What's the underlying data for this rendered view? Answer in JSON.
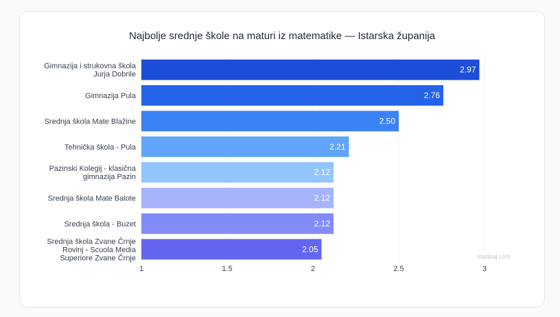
{
  "chart_data": {
    "type": "bar",
    "orientation": "horizontal",
    "title": "Najbolje srednje škole na maturi iz matematike — Istarska županija",
    "categories": [
      [
        "Gimnazija i strukovna škola",
        "Jurja Dobrile"
      ],
      [
        "Gimnazija Pula"
      ],
      [
        "Srednja škola Mate Blažine"
      ],
      [
        "Tehnička škola - Pula"
      ],
      [
        "Pazinski Kolegij - klasična",
        "gimnazija Pazin"
      ],
      [
        "Srednja škola Mate Balote"
      ],
      [
        "Srednja škola - Buzet"
      ],
      [
        "Srednja škola Zvane Črnje",
        "Rovinj - Scuola Media",
        "Superiore Zvane Črnje"
      ]
    ],
    "values": [
      2.97,
      2.76,
      2.5,
      2.21,
      2.12,
      2.12,
      2.12,
      2.05
    ],
    "value_labels": [
      "2.97",
      "2.76",
      "2.50",
      "2.21",
      "2.12",
      "2.12",
      "2.12",
      "2.05"
    ],
    "colors": [
      "#1d4ed8",
      "#2563eb",
      "#3b82f6",
      "#60a5fa",
      "#93c5fd",
      "#a5b4fc",
      "#818cf8",
      "#6366f1"
    ],
    "xlim": [
      1,
      3
    ],
    "xticks": [
      1,
      1.5,
      2,
      2.5,
      3
    ],
    "xtick_labels": [
      "1",
      "1.5",
      "2",
      "2.5",
      "3"
    ],
    "grid": true
  },
  "watermark": "studiraj.com"
}
